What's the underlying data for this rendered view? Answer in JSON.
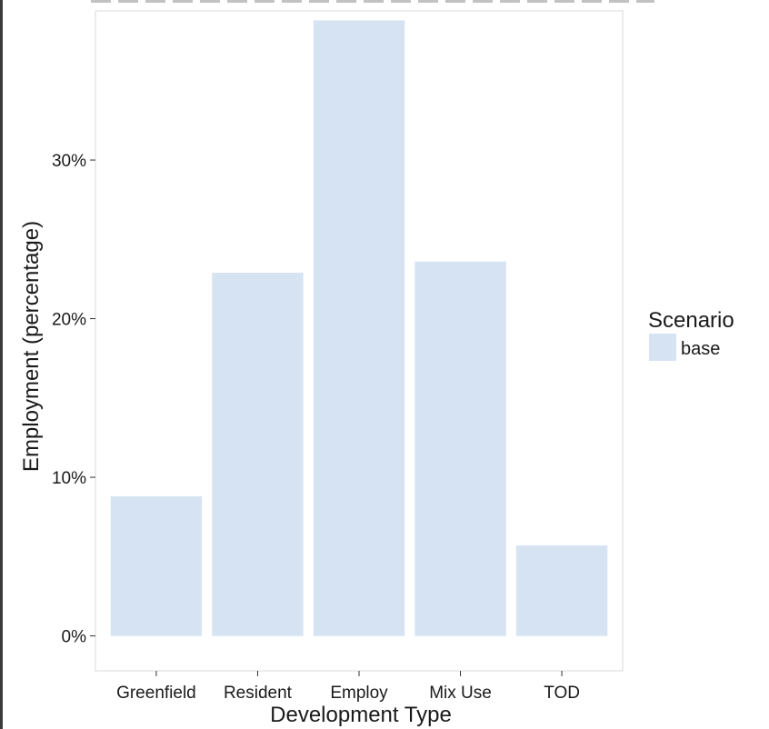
{
  "chart_data": {
    "type": "bar",
    "categories": [
      "Greenfield",
      "Resident",
      "Employ",
      "Mix Use",
      "TOD"
    ],
    "series": [
      {
        "name": "base",
        "values": [
          8.8,
          22.9,
          38.8,
          23.6,
          5.7
        ],
        "color": "#d6e3f2"
      }
    ],
    "title": "",
    "xlabel": "Development Type",
    "ylabel": "Employment (percentage)",
    "ylim": [
      -2.2,
      39.4
    ],
    "yticks": [
      0,
      10,
      20,
      30
    ],
    "ytick_labels": [
      "0%",
      "10%",
      "20%",
      "30%"
    ],
    "grid": false,
    "legend": {
      "title": "Scenario",
      "placement": "right"
    },
    "colors": {
      "bar": "#d6e3f2",
      "panel_border": "#d9d9d9",
      "tick": "#333333"
    }
  }
}
